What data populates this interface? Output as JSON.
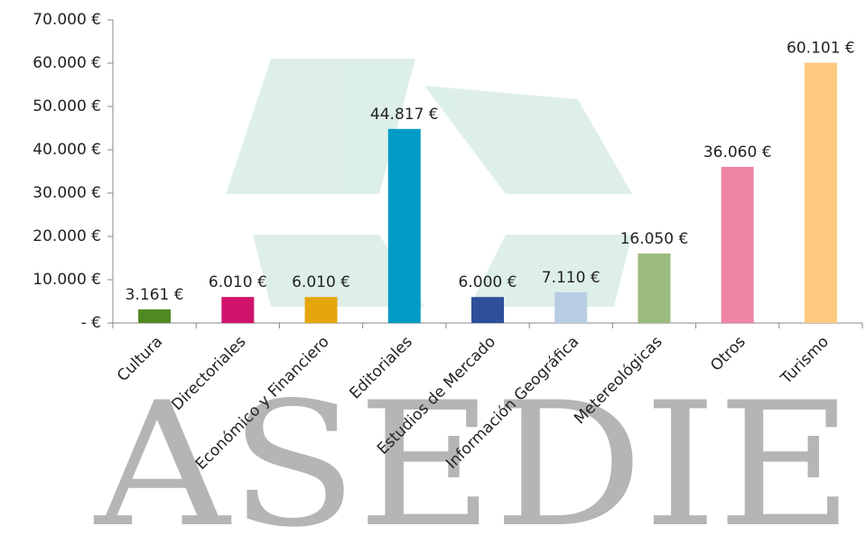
{
  "chart_data": {
    "type": "bar",
    "watermark": "ASEDIE",
    "categories": [
      "Cultura",
      "Directoriales",
      "Económico y Financiero",
      "Editoriales",
      "Estudios de Mercado",
      "Información Geográfica",
      "Metereológicas",
      "Otros",
      "Turismo"
    ],
    "values": [
      3161,
      6010,
      6010,
      44817,
      6000,
      7110,
      16050,
      36060,
      60101
    ],
    "value_labels": [
      "3.161 €",
      "6.010 €",
      "6.010 €",
      "44.817 €",
      "6.000 €",
      "7.110 €",
      "16.050 €",
      "36.060 €",
      "60.101 €"
    ],
    "colors": [
      "#4e8a21",
      "#d0146c",
      "#e5a50b",
      "#009bc4",
      "#2e4f99",
      "#b8cce4",
      "#9bbb7e",
      "#ef84a5",
      "#fcc97e"
    ],
    "ylim": [
      0,
      70000
    ],
    "yticks": [
      {
        "value": 0,
        "label": "-   €"
      },
      {
        "value": 10000,
        "label": "10.000 €"
      },
      {
        "value": 20000,
        "label": "20.000 €"
      },
      {
        "value": 30000,
        "label": "30.000 €"
      },
      {
        "value": 40000,
        "label": "40.000 €"
      },
      {
        "value": 50000,
        "label": "50.000 €"
      },
      {
        "value": 60000,
        "label": "60.000 €"
      },
      {
        "value": 70000,
        "label": "70.000 €"
      }
    ],
    "grid": false
  }
}
